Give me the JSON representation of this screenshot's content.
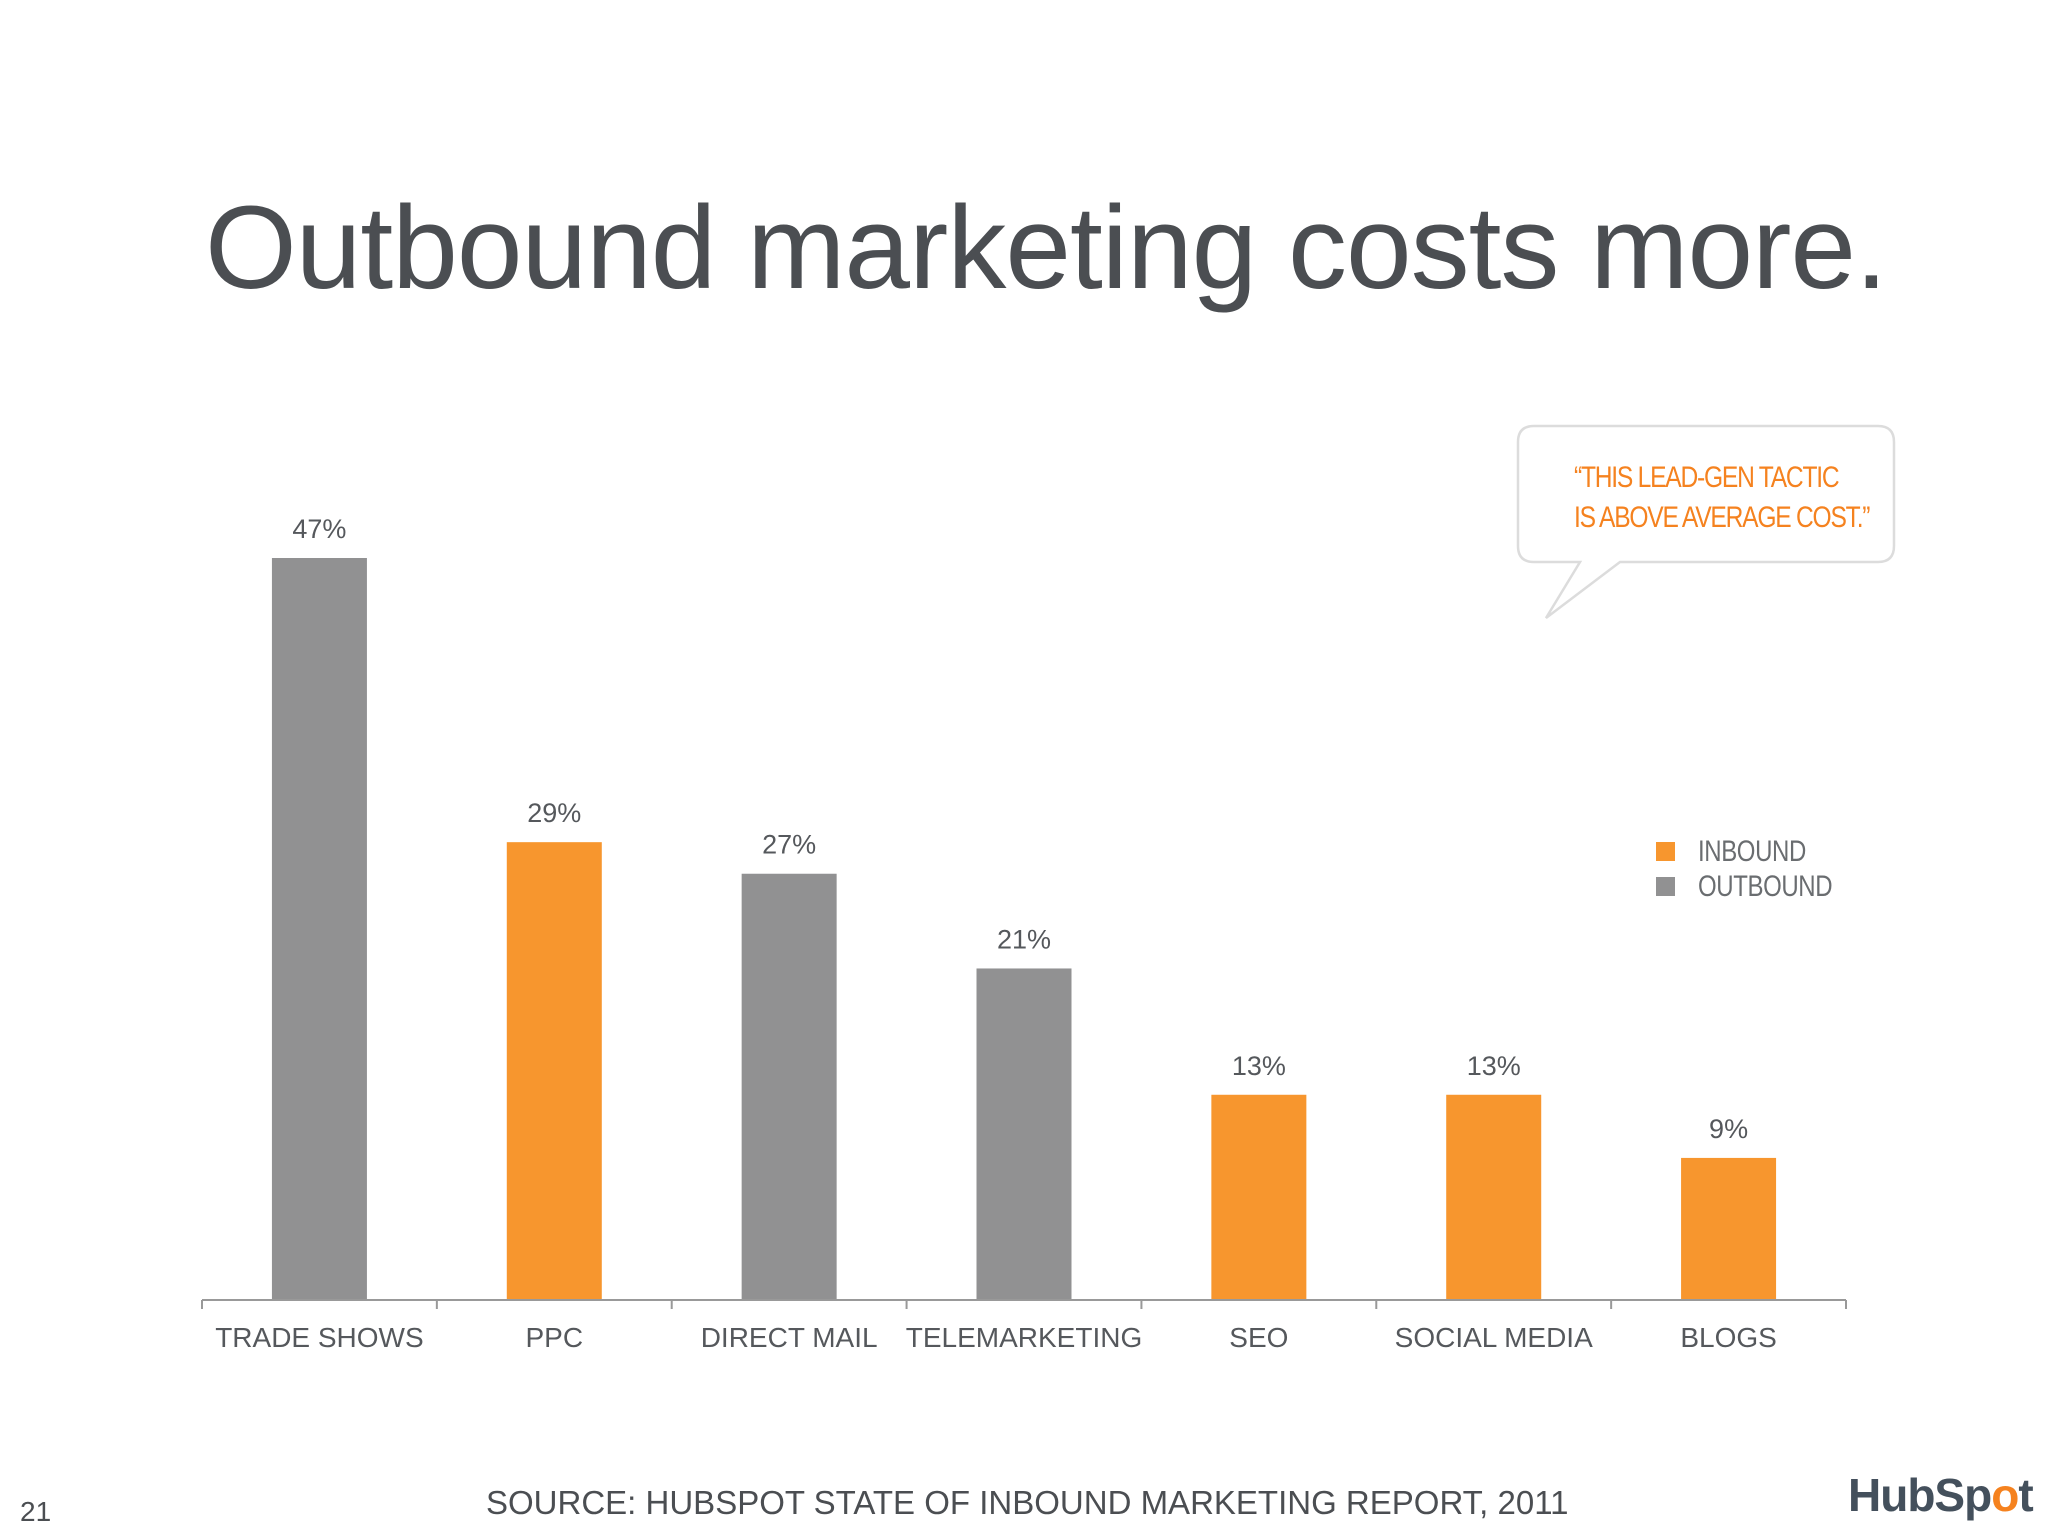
{
  "slide": {
    "title": "Outbound marketing costs more.",
    "page_number": "21",
    "source": "SOURCE: HUBSPOT STATE OF INBOUND MARKETING REPORT, 2011",
    "logo_text_left": "HubSp",
    "logo_text_mid": "o",
    "logo_text_right": "t",
    "callout": {
      "line1": "“THIS LEAD-GEN TACTIC",
      "line2": "IS ABOVE AVERAGE COST.”"
    }
  },
  "legend": [
    {
      "label": "INBOUND",
      "color": "#f7962e"
    },
    {
      "label": "OUTBOUND",
      "color": "#919192"
    }
  ],
  "chart_data": {
    "type": "bar",
    "title": "",
    "xlabel": "",
    "ylabel": "",
    "ylim": [
      0,
      47
    ],
    "categories": [
      "TRADE SHOWS",
      "PPC",
      "DIRECT MAIL",
      "TELEMARKETING",
      "SEO",
      "SOCIAL MEDIA",
      "BLOGS"
    ],
    "values": [
      47,
      29,
      27,
      21,
      13,
      13,
      9
    ],
    "value_labels": [
      "47%",
      "29%",
      "27%",
      "21%",
      "13%",
      "13%",
      "9%"
    ],
    "bar_type": [
      "OUTBOUND",
      "INBOUND",
      "OUTBOUND",
      "OUTBOUND",
      "INBOUND",
      "INBOUND",
      "INBOUND"
    ],
    "colors": {
      "INBOUND": "#f7962e",
      "OUTBOUND": "#919192"
    },
    "legend_position": "right",
    "grid": false
  }
}
